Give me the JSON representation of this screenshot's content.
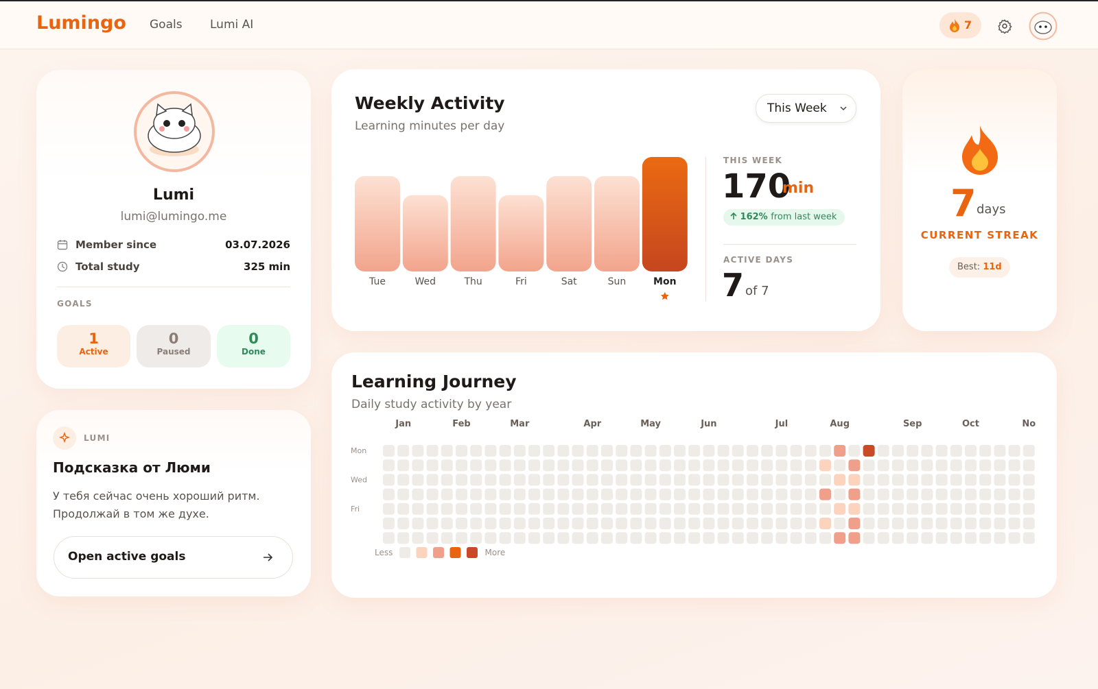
{
  "header": {
    "logo": "Lumingo",
    "nav": [
      "Goals",
      "Lumi AI"
    ],
    "streak_badge": "7"
  },
  "profile": {
    "name": "Lumi",
    "email": "lumi@lumingo.me",
    "rows": [
      {
        "label": "Member since",
        "value": "03.07.2026"
      },
      {
        "label": "Total study",
        "value": "325 min"
      }
    ],
    "goals_title": "GOALS",
    "goals": [
      {
        "count": "1",
        "label": "Active"
      },
      {
        "count": "0",
        "label": "Paused"
      },
      {
        "count": "0",
        "label": "Done"
      }
    ]
  },
  "tip": {
    "tag": "LUMI",
    "title": "Подсказка от Люми",
    "lines": [
      "У тебя сейчас очень хороший ритм.",
      "Продолжай в том же духе."
    ],
    "button": "Open active goals"
  },
  "weekly": {
    "title": "Weekly Activity",
    "subtitle": "Learning minutes per day",
    "dropdown": "This Week",
    "days": [
      "Tue",
      "Wed",
      "Thu",
      "Fri",
      "Sat",
      "Sun",
      "Mon"
    ],
    "minutes": [
      25,
      20,
      25,
      20,
      25,
      25,
      30
    ],
    "this_week_label": "THIS WEEK",
    "total": "170",
    "total_unit": "min",
    "change": "162%",
    "change_text": "from last week",
    "active_label": "ACTIVE DAYS",
    "active": "7",
    "active_of": "of 7"
  },
  "streak": {
    "value": "7",
    "unit": "days",
    "label": "CURRENT STREAK",
    "best_label": "Best:",
    "best": "11d"
  },
  "journey": {
    "title": "Learning Journey",
    "subtitle": "Daily study activity by year",
    "months": [
      "Jan",
      "Feb",
      "Mar",
      "Apr",
      "May",
      "Jun",
      "Jul",
      "Aug",
      "Sep",
      "Oct",
      "No"
    ],
    "day_labels": [
      "Mon",
      "Wed",
      "Fri"
    ],
    "level_colors": [
      "#efebe7",
      "#fcd3bd",
      "#f0a08a",
      "#e8640f",
      "#c84a28"
    ],
    "legend_less": "Less",
    "legend_more": "More",
    "cells": [
      [
        0,
        0,
        0,
        0,
        0,
        0,
        0,
        0,
        0,
        0,
        0,
        0,
        0,
        0,
        0,
        0,
        0,
        0,
        0,
        0,
        0,
        0,
        0,
        0,
        0,
        0,
        0,
        0,
        0,
        0,
        0,
        2,
        0,
        4,
        0,
        0,
        0,
        0,
        0,
        0,
        0,
        0,
        0,
        0,
        0
      ],
      [
        0,
        0,
        0,
        0,
        0,
        0,
        0,
        0,
        0,
        0,
        0,
        0,
        0,
        0,
        0,
        0,
        0,
        0,
        0,
        0,
        0,
        0,
        0,
        0,
        0,
        0,
        0,
        0,
        0,
        0,
        1,
        0,
        2,
        0,
        0,
        0,
        0,
        0,
        0,
        0,
        0,
        0,
        0,
        0,
        0
      ],
      [
        0,
        0,
        0,
        0,
        0,
        0,
        0,
        0,
        0,
        0,
        0,
        0,
        0,
        0,
        0,
        0,
        0,
        0,
        0,
        0,
        0,
        0,
        0,
        0,
        0,
        0,
        0,
        0,
        0,
        0,
        0,
        1,
        1,
        0,
        0,
        0,
        0,
        0,
        0,
        0,
        0,
        0,
        0,
        0,
        0
      ],
      [
        0,
        0,
        0,
        0,
        0,
        0,
        0,
        0,
        0,
        0,
        0,
        0,
        0,
        0,
        0,
        0,
        0,
        0,
        0,
        0,
        0,
        0,
        0,
        0,
        0,
        0,
        0,
        0,
        0,
        0,
        2,
        0,
        2,
        0,
        0,
        0,
        0,
        0,
        0,
        0,
        0,
        0,
        0,
        0,
        0
      ],
      [
        0,
        0,
        0,
        0,
        0,
        0,
        0,
        0,
        0,
        0,
        0,
        0,
        0,
        0,
        0,
        0,
        0,
        0,
        0,
        0,
        0,
        0,
        0,
        0,
        0,
        0,
        0,
        0,
        0,
        0,
        0,
        1,
        1,
        0,
        0,
        0,
        0,
        0,
        0,
        0,
        0,
        0,
        0,
        0,
        0
      ],
      [
        0,
        0,
        0,
        0,
        0,
        0,
        0,
        0,
        0,
        0,
        0,
        0,
        0,
        0,
        0,
        0,
        0,
        0,
        0,
        0,
        0,
        0,
        0,
        0,
        0,
        0,
        0,
        0,
        0,
        0,
        1,
        0,
        2,
        0,
        0,
        0,
        0,
        0,
        0,
        0,
        0,
        0,
        0,
        0,
        0
      ],
      [
        0,
        0,
        0,
        0,
        0,
        0,
        0,
        0,
        0,
        0,
        0,
        0,
        0,
        0,
        0,
        0,
        0,
        0,
        0,
        0,
        0,
        0,
        0,
        0,
        0,
        0,
        0,
        0,
        0,
        0,
        0,
        2,
        2,
        0,
        0,
        0,
        0,
        0,
        0,
        0,
        0,
        0,
        0,
        0,
        0
      ]
    ]
  }
}
